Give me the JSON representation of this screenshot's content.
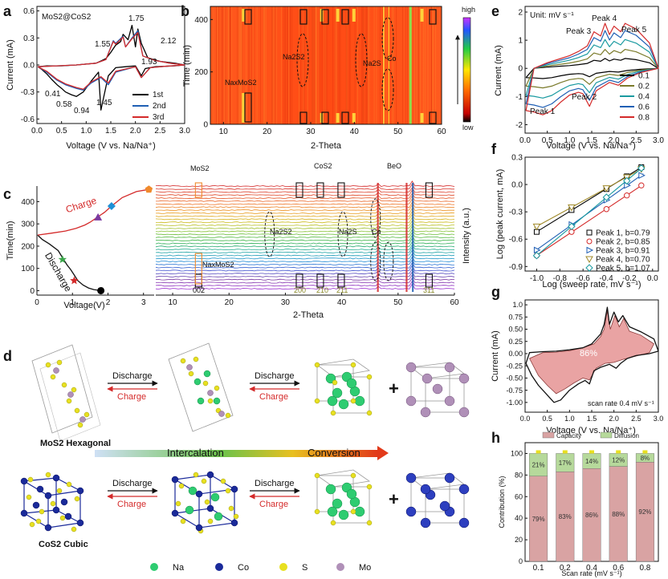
{
  "figure": {
    "panel_letters": [
      "a",
      "b",
      "c",
      "d",
      "e",
      "f",
      "g",
      "h"
    ]
  },
  "chart_data": [
    {
      "id": "a",
      "type": "line",
      "title": "",
      "annotation": "MoS2@CoS2",
      "xlabel": "Voltage (V vs. Na/Na⁺)",
      "ylabel": "Current (mA)",
      "xlim": [
        0.0,
        3.0
      ],
      "ylim": [
        -0.65,
        0.65
      ],
      "xticks": [
        "0.0",
        "0.5",
        "1.0",
        "1.5",
        "2.0",
        "2.5",
        "3.0"
      ],
      "yticks": [
        "0.6",
        "0.3",
        "0.0",
        "-0.3",
        "-0.6"
      ],
      "peak_labels": [
        "1.75",
        "1.55",
        "2.12",
        "1.93",
        "0.41",
        "0.58",
        "0.94",
        "1.45"
      ],
      "legend": [
        "1st",
        "2nd",
        "3rd"
      ],
      "series": [
        {
          "name": "1st",
          "color": "#000000",
          "x": [
            0.02,
            0.1,
            0.2,
            0.3,
            0.41,
            0.5,
            0.58,
            0.7,
            0.8,
            0.94,
            1.1,
            1.25,
            1.3,
            1.45,
            1.6,
            1.8,
            2.0,
            2.12,
            2.2,
            2.4,
            2.6,
            2.8,
            3.0,
            2.8,
            2.5,
            2.25,
            2.12,
            2.05,
            2.0,
            1.93,
            1.85,
            1.75,
            1.7,
            1.6,
            1.5,
            1.4,
            1.2,
            1.0,
            0.8,
            0.5,
            0.2,
            0.02
          ],
          "y": [
            -0.02,
            -0.05,
            -0.1,
            -0.16,
            -0.22,
            -0.26,
            -0.3,
            -0.33,
            -0.35,
            -0.3,
            -0.18,
            -0.08,
            -0.5,
            -0.12,
            -0.03,
            -0.02,
            -0.01,
            -0.12,
            -0.04,
            -0.02,
            -0.015,
            -0.01,
            0.0,
            0.02,
            0.04,
            0.08,
            0.24,
            0.4,
            0.2,
            0.44,
            0.28,
            0.34,
            0.26,
            0.22,
            0.14,
            0.07,
            0.02,
            0.01,
            0.0,
            -0.01,
            -0.01,
            -0.02
          ]
        },
        {
          "name": "2nd",
          "color": "#1f5fb4",
          "x": [
            0.02,
            0.2,
            0.41,
            0.58,
            0.8,
            0.94,
            1.1,
            1.3,
            1.45,
            1.6,
            2.0,
            2.12,
            2.3,
            2.6,
            3.0,
            2.7,
            2.4,
            2.15,
            2.05,
            1.93,
            1.8,
            1.75,
            1.6,
            1.55,
            1.4,
            1.2,
            0.8,
            0.4,
            0.02
          ],
          "y": [
            -0.02,
            -0.08,
            -0.17,
            -0.22,
            -0.26,
            -0.28,
            -0.2,
            -0.14,
            -0.22,
            -0.08,
            -0.02,
            -0.14,
            -0.03,
            -0.015,
            0.0,
            0.02,
            0.05,
            0.1,
            0.38,
            0.3,
            0.2,
            0.32,
            0.24,
            0.27,
            0.06,
            0.02,
            0.0,
            -0.01,
            -0.02
          ]
        },
        {
          "name": "3rd",
          "color": "#d42a2a",
          "x": [
            0.02,
            0.2,
            0.41,
            0.58,
            0.8,
            0.94,
            1.1,
            1.3,
            1.45,
            1.6,
            2.0,
            2.12,
            2.3,
            2.6,
            3.0,
            2.7,
            2.4,
            2.15,
            2.05,
            1.93,
            1.8,
            1.75,
            1.6,
            1.55,
            1.4,
            1.2,
            0.8,
            0.4,
            0.02
          ],
          "y": [
            -0.02,
            -0.07,
            -0.16,
            -0.21,
            -0.25,
            -0.27,
            -0.19,
            -0.13,
            -0.2,
            -0.07,
            -0.02,
            -0.14,
            -0.03,
            -0.015,
            0.0,
            0.02,
            0.05,
            0.1,
            0.36,
            0.29,
            0.2,
            0.31,
            0.23,
            0.26,
            0.06,
            0.02,
            0.0,
            -0.01,
            -0.02
          ]
        }
      ]
    },
    {
      "id": "b",
      "type": "heatmap",
      "xlabel": "2-Theta",
      "ylabel": "Time (min)",
      "xlim": [
        7,
        60
      ],
      "ylim": [
        0,
        450
      ],
      "xticks": [
        "10",
        "20",
        "30",
        "40",
        "50",
        "60"
      ],
      "yticks": [
        "0",
        "200",
        "400"
      ],
      "colorbar": {
        "high": "high",
        "low": "low"
      },
      "annotations": [
        "Na2S2",
        "Na2S",
        "Co",
        "NaxMoS2"
      ]
    },
    {
      "id": "c",
      "type": "line",
      "left_plot": {
        "xlabel": "Voltage(V)",
        "ylabel": "Time(min)",
        "xlim": [
          0,
          3.3
        ],
        "ylim": [
          -20,
          470
        ],
        "xticks": [
          "0",
          "1",
          "2",
          "3"
        ],
        "yticks": [
          "0",
          "100",
          "200",
          "300",
          "400"
        ],
        "labels": [
          "Charge",
          "Discharge"
        ],
        "discharge": {
          "x": [
            0.02,
            0.15,
            0.35,
            0.6,
            0.75,
            0.85,
            0.95,
            1.05,
            1.15,
            1.3,
            1.45,
            1.6,
            1.8
          ],
          "y": [
            250,
            230,
            210,
            180,
            140,
            115,
            95,
            70,
            45,
            25,
            12,
            5,
            0
          ]
        },
        "charge": {
          "x": [
            0.02,
            0.4,
            0.8,
            1.1,
            1.35,
            1.5,
            1.7,
            1.9,
            2.1,
            2.4,
            2.8,
            3.15
          ],
          "y": [
            250,
            258,
            268,
            280,
            295,
            308,
            330,
            352,
            380,
            418,
            445,
            455
          ]
        },
        "markers": [
          {
            "name": "pentagon",
            "color": "#f08a2c",
            "x": 3.15,
            "y": 455
          },
          {
            "name": "diamond",
            "color": "#1e90d6",
            "x": 2.1,
            "y": 380
          },
          {
            "name": "triangle",
            "color": "#7a3aa0",
            "x": 1.72,
            "y": 330
          },
          {
            "name": "star",
            "color": "#3aa54a",
            "x": 0.72,
            "y": 140
          },
          {
            "name": "star",
            "color": "#d42a2a",
            "x": 1.05,
            "y": 45
          },
          {
            "name": "circle",
            "color": "#000000",
            "x": 1.8,
            "y": 0
          }
        ]
      },
      "right_plot": {
        "xlabel": "2-Theta",
        "ylabel": "Intensity (a.u.)",
        "xlim": [
          7,
          60
        ],
        "xticks": [
          "10",
          "20",
          "30",
          "40",
          "50",
          "60"
        ],
        "annotations": [
          "MoS2",
          "CoS2",
          "BeO",
          "Na2S2",
          "Na2S",
          "Co",
          "NaxMoS2"
        ],
        "miller_indices": [
          "002",
          "200",
          "210",
          "211",
          "311"
        ],
        "n_patterns": 35
      }
    },
    {
      "id": "e",
      "type": "line",
      "annotation": "Unit: mV s⁻¹",
      "xlabel": "Voltage (V vs. Na/Na⁺)",
      "ylabel": "Current (mA)",
      "xlim": [
        0.0,
        3.0
      ],
      "ylim": [
        -2.3,
        2.2
      ],
      "xticks": [
        "0.0",
        "0.5",
        "1.0",
        "1.5",
        "2.0",
        "2.5",
        "3.0"
      ],
      "yticks": [
        "2",
        "1",
        "0",
        "-1",
        "-2"
      ],
      "peak_labels": [
        "Peak 1",
        "Peak 2",
        "Peak 3",
        "Peak 4",
        "Peak 5"
      ],
      "legend": [
        "0.1",
        "0.2",
        "0.4",
        "0.6",
        "0.8"
      ],
      "series": [
        {
          "name": "0.1",
          "color": "#000000",
          "scale": 0.22
        },
        {
          "name": "0.2",
          "color": "#7a7a2a",
          "scale": 0.42
        },
        {
          "name": "0.4",
          "color": "#1a9aa0",
          "scale": 0.64
        },
        {
          "name": "0.6",
          "color": "#1f5fb4",
          "scale": 0.84
        },
        {
          "name": "0.8",
          "color": "#d42a2a",
          "scale": 1.0
        }
      ],
      "base_cv": {
        "x": [
          0.02,
          0.2,
          0.4,
          0.6,
          0.8,
          1.0,
          1.2,
          1.3,
          1.45,
          1.6,
          1.9,
          2.1,
          2.3,
          2.6,
          3.0,
          2.8,
          2.5,
          2.25,
          2.15,
          2.0,
          1.9,
          1.8,
          1.7,
          1.55,
          1.4,
          1.2,
          1.0,
          0.8,
          0.5,
          0.2,
          0.02
        ],
        "y": [
          -1.5,
          -1.55,
          -1.65,
          -1.5,
          -1.2,
          -0.95,
          -0.85,
          -0.9,
          -1.35,
          -0.8,
          -0.5,
          -0.6,
          -0.35,
          -0.15,
          0.0,
          0.9,
          1.4,
          1.6,
          1.3,
          1.5,
          1.2,
          1.6,
          1.15,
          1.3,
          0.8,
          0.6,
          0.45,
          0.35,
          0.2,
          0.0,
          -1.5
        ]
      }
    },
    {
      "id": "f",
      "type": "scatter",
      "xlabel": "Log (sweep rate, mV s⁻¹)",
      "ylabel": "Log (peak current, mA)",
      "xlim": [
        -1.1,
        0.05
      ],
      "ylim": [
        -0.95,
        0.3
      ],
      "xticks": [
        "-1.0",
        "-0.8",
        "-0.6",
        "-0.4",
        "-0.2",
        "0.0"
      ],
      "yticks": [
        "0.3",
        "0.0",
        "-0.3",
        "-0.6",
        "-0.9"
      ],
      "x": [
        -1.0,
        -0.699,
        -0.398,
        -0.222,
        -0.097
      ],
      "series": [
        {
          "name": "Peak 1, b=0.79",
          "color": "#000000",
          "marker": "square",
          "values": [
            -0.52,
            -0.28,
            -0.05,
            0.09,
            0.19
          ]
        },
        {
          "name": "Peak 2, b=0.85",
          "color": "#d42a2a",
          "marker": "circle",
          "values": [
            -0.78,
            -0.52,
            -0.27,
            -0.12,
            -0.01
          ]
        },
        {
          "name": "Peak 3, b=0.91",
          "color": "#1f5fb4",
          "marker": "triangle-right",
          "values": [
            -0.72,
            -0.44,
            -0.17,
            -0.01,
            0.1
          ]
        },
        {
          "name": "Peak 4, b=0.70",
          "color": "#a08a2a",
          "marker": "triangle-down",
          "values": [
            -0.46,
            -0.25,
            -0.04,
            0.08,
            0.17
          ]
        },
        {
          "name": "Peak 5, b=1.07",
          "color": "#1a9aa0",
          "marker": "diamond",
          "values": [
            -0.78,
            -0.46,
            -0.14,
            0.04,
            0.18
          ]
        }
      ]
    },
    {
      "id": "g",
      "type": "area",
      "annotation": "86%",
      "note": "scan rate 0.4 mV s⁻¹",
      "xlabel": "Voltage (V vs. Na/Na⁺)",
      "ylabel": "Current (mA)",
      "xlim": [
        0.0,
        3.0
      ],
      "ylim": [
        -1.2,
        1.1
      ],
      "xticks": [
        "0.0",
        "0.5",
        "1.0",
        "1.5",
        "2.0",
        "2.5",
        "3.0"
      ],
      "yticks": [
        "1.0",
        "0.75",
        "0.50",
        "0.25",
        "0.00",
        "-0.25",
        "-0.50",
        "-0.75",
        "-1.00"
      ],
      "outer": {
        "x": [
          0.02,
          0.15,
          0.3,
          0.5,
          0.65,
          0.8,
          1.0,
          1.2,
          1.35,
          1.45,
          1.55,
          1.7,
          1.9,
          2.05,
          2.15,
          2.3,
          2.5,
          2.8,
          3.0,
          2.9,
          2.6,
          2.35,
          2.2,
          2.1,
          2.0,
          1.9,
          1.85,
          1.78,
          1.7,
          1.6,
          1.5,
          1.3,
          1.0,
          0.7,
          0.4,
          0.1,
          0.02
        ],
        "y": [
          -0.2,
          -0.45,
          -0.65,
          -0.85,
          -1.0,
          -0.95,
          -0.75,
          -0.62,
          -0.55,
          -0.62,
          -0.35,
          -0.28,
          -0.22,
          -0.3,
          -0.2,
          -0.1,
          -0.04,
          0.0,
          0.05,
          0.3,
          0.45,
          0.55,
          0.78,
          0.65,
          0.85,
          0.6,
          0.95,
          0.6,
          0.4,
          0.3,
          0.2,
          0.12,
          0.08,
          0.05,
          0.04,
          0.02,
          -0.2
        ]
      },
      "inner": {
        "x": [
          0.1,
          0.3,
          0.5,
          0.7,
          0.9,
          1.1,
          1.3,
          1.45,
          1.6,
          1.8,
          2.0,
          2.2,
          2.5,
          2.8,
          2.9,
          2.6,
          2.35,
          2.22,
          2.12,
          2.02,
          1.92,
          1.85,
          1.78,
          1.7,
          1.55,
          1.3,
          1.0,
          0.7,
          0.4,
          0.1
        ],
        "y": [
          -0.1,
          -0.45,
          -0.65,
          -0.82,
          -0.72,
          -0.6,
          -0.5,
          -0.54,
          -0.3,
          -0.2,
          -0.18,
          -0.12,
          -0.05,
          0.02,
          0.2,
          0.38,
          0.46,
          0.72,
          0.55,
          0.78,
          0.5,
          0.88,
          0.5,
          0.35,
          0.2,
          0.12,
          0.06,
          0.03,
          0.02,
          -0.1
        ]
      }
    },
    {
      "id": "h",
      "type": "bar",
      "xlabel": "Scan rate (mV s⁻¹)",
      "ylabel": "Contribution (%)",
      "ylim": [
        0,
        110
      ],
      "yticks": [
        "0",
        "20",
        "40",
        "60",
        "80",
        "100"
      ],
      "categories": [
        "0.1",
        "0.2",
        "0.4",
        "0.6",
        "0.8"
      ],
      "legend": [
        "Capacity",
        "Diffusion"
      ],
      "series": [
        {
          "name": "Capacity",
          "color": "#d9a3a3",
          "values": [
            79,
            83,
            86,
            88,
            92
          ],
          "labels": [
            "79%",
            "83%",
            "86%",
            "88%",
            "92%"
          ]
        },
        {
          "name": "Diffusion",
          "color": "#b6d99b",
          "values": [
            21,
            17,
            14,
            12,
            8
          ],
          "labels": [
            "21%",
            "17%",
            "14%",
            "12%",
            "8%"
          ]
        }
      ]
    }
  ],
  "schematic": {
    "id": "d",
    "row1_label": "MoS2 Hexagonal",
    "row2_label": "CoS2 Cubic",
    "arrow_top": "Discharge",
    "arrow_bottom": "Charge",
    "plus": "+",
    "process_left": "Intercalation",
    "process_right": "Conversion",
    "legend": [
      {
        "name": "Na",
        "color": "#2ecc71"
      },
      {
        "name": "Co",
        "color": "#1a2a9a"
      },
      {
        "name": "S",
        "color": "#e8e020"
      },
      {
        "name": "Mo",
        "color": "#b090b8"
      }
    ]
  }
}
